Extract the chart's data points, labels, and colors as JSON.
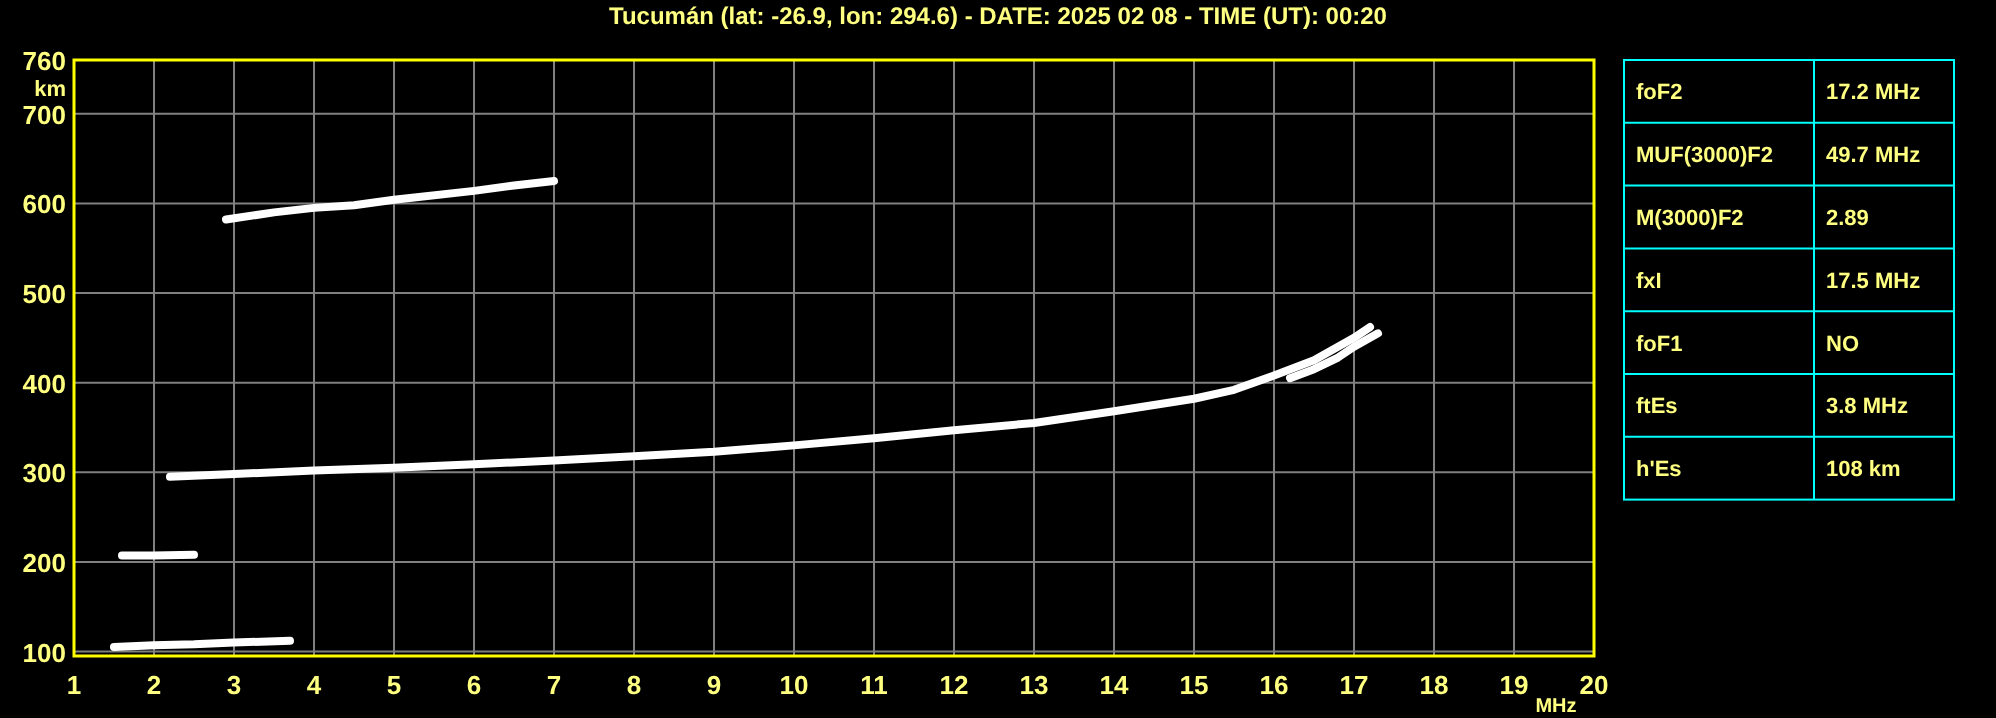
{
  "chart_data": [
    {
      "type": "line",
      "title": "Tucumán (lat: -26.9, lon: 294.6) - DATE: 2025 02 08 - TIME (UT): 00:20",
      "xlabel": "MHz",
      "ylabel": "km",
      "xlim": [
        1,
        20
      ],
      "xticks": [
        1,
        2,
        3,
        4,
        5,
        6,
        7,
        8,
        9,
        10,
        11,
        12,
        13,
        14,
        15,
        16,
        17,
        18,
        19,
        20
      ],
      "ylim": [
        95,
        760
      ],
      "yticks": [
        100,
        200,
        300,
        400,
        500,
        600,
        700,
        760
      ],
      "grid": true,
      "marker": "none",
      "line_style": "solid",
      "series": [
        {
          "color": "#ffffff",
          "x": [
            2.2,
            3,
            4,
            5,
            6,
            7,
            8,
            9,
            10,
            11,
            12,
            13,
            14,
            15,
            15.5,
            16,
            16.5,
            17,
            17.2
          ],
          "values": [
            295,
            298,
            302,
            305,
            309,
            313,
            318,
            323,
            330,
            338,
            347,
            355,
            368,
            382,
            392,
            408,
            425,
            450,
            462
          ]
        },
        {
          "color": "#ffffff",
          "x": [
            16.2,
            16.5,
            16.8,
            17,
            17.3
          ],
          "values": [
            405,
            415,
            428,
            440,
            455
          ]
        },
        {
          "color": "#ffffff",
          "x": [
            2.9,
            3.5,
            4,
            4.5,
            5,
            6,
            6.5,
            7
          ],
          "values": [
            582,
            590,
            595,
            598,
            604,
            614,
            620,
            625
          ]
        },
        {
          "color": "#ffffff",
          "x": [
            1.5,
            2,
            2.5,
            3,
            3.7
          ],
          "values": [
            105,
            107,
            108,
            110,
            112
          ]
        },
        {
          "color": "#ffffff",
          "x": [
            1.6,
            2,
            2.5
          ],
          "values": [
            207,
            207,
            208
          ]
        }
      ]
    },
    {
      "type": "other",
      "annotations": [
        "foF2",
        "17.2 MHz",
        "MUF(3000)F2",
        "49.7 MHz",
        "M(3000)F2",
        "2.89",
        "fxI",
        "17.5 MHz",
        "foF1",
        "NO",
        "ftEs",
        "3.8 MHz",
        "h'Es",
        "108 km"
      ]
    }
  ]
}
